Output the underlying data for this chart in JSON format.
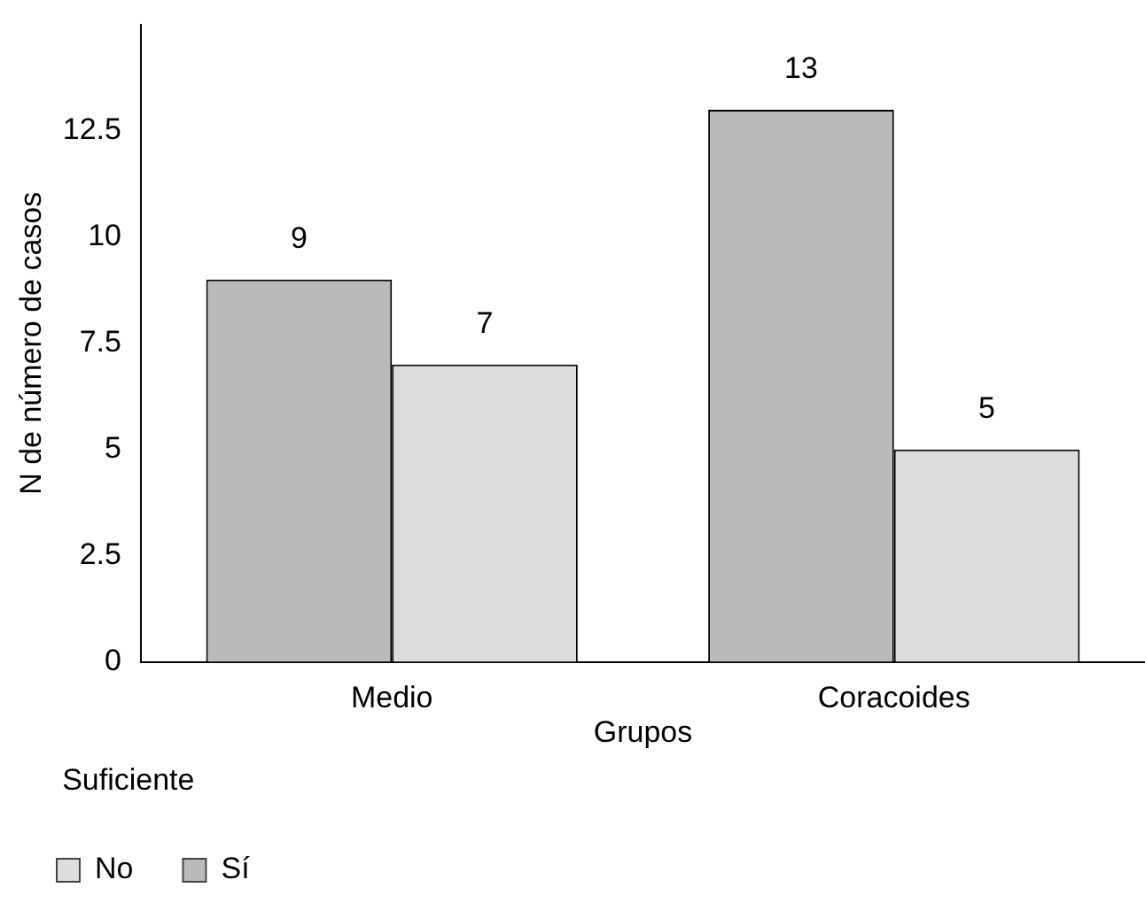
{
  "chart_data": {
    "type": "bar",
    "xlabel": "Grupos",
    "ylabel": "N de número de casos",
    "legend_title": "Suficiente",
    "categories": [
      "Medio",
      "Coracoides"
    ],
    "series": [
      {
        "name": "Sí",
        "color": "#b9babc",
        "values": [
          9,
          13
        ]
      },
      {
        "name": "No",
        "color": "#dcdddf",
        "values": [
          7,
          5
        ]
      }
    ],
    "ylim": [
      0,
      15
    ],
    "yticks": [
      0,
      2.5,
      5,
      7.5,
      10,
      12.5
    ],
    "grid": false,
    "legend": "bottom left",
    "data_labels": true
  }
}
